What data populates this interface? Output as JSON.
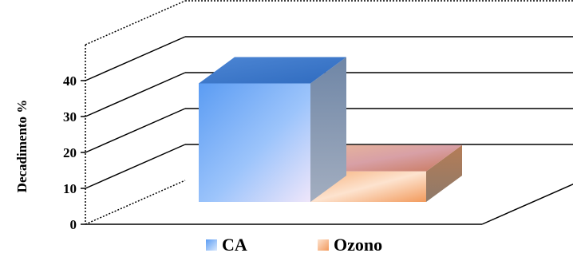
{
  "chart_data": {
    "type": "bar",
    "style": "3d-side-by-side",
    "title": "",
    "xlabel": "",
    "ylabel": "Decadimento %",
    "ylim": [
      0,
      40
    ],
    "yticks": [
      0,
      10,
      20,
      30,
      40
    ],
    "grid": true,
    "legend_position": "bottom",
    "categories": [
      ""
    ],
    "series": [
      {
        "name": "CA",
        "values": [
          33
        ],
        "color": "#5fa0f0"
      },
      {
        "name": "Ozono",
        "values": [
          8.5
        ],
        "color": "#f3a064"
      }
    ]
  }
}
